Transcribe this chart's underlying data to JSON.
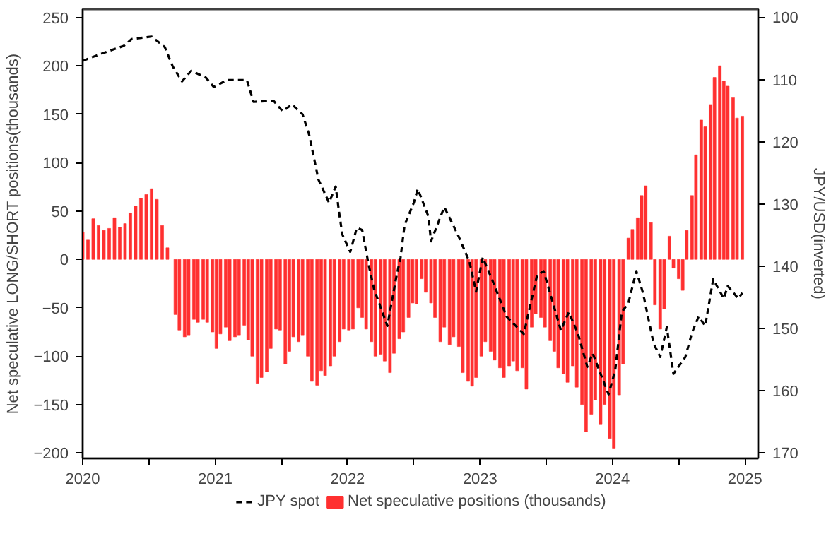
{
  "chart_data": {
    "type": "bar",
    "ylabel": "Net speculative LONG/SHORT positions(thousands)",
    "y2label": "JPY/USD(inverted)",
    "xlim": [
      2020,
      2025.1
    ],
    "xticks": [
      {
        "value": 2020,
        "label": "2020"
      },
      {
        "value": 2020.5,
        "label": null
      },
      {
        "value": 2021,
        "label": "2021"
      },
      {
        "value": 2021.5,
        "label": null
      },
      {
        "value": 2022,
        "label": "2022"
      },
      {
        "value": 2022.5,
        "label": null
      },
      {
        "value": 2023,
        "label": "2023"
      },
      {
        "value": 2023.5,
        "label": null
      },
      {
        "value": 2024,
        "label": "2024"
      },
      {
        "value": 2024.5,
        "label": null
      },
      {
        "value": 2025,
        "label": "2025"
      }
    ],
    "ylim": [
      -205.6,
      258.5
    ],
    "yticks": [
      -200,
      -150,
      -100,
      -50,
      0,
      50,
      100,
      150,
      200,
      250
    ],
    "y2lim": [
      170.9,
      98.7
    ],
    "y2ticks": [
      100,
      110,
      120,
      130,
      140,
      150,
      160,
      170
    ],
    "legend": "bottom",
    "series": [
      {
        "name": "JPY spot",
        "type": "line",
        "axis": "y2",
        "color": "#000000",
        "line_style": "dashed",
        "x": [
          2020.0,
          2020.16,
          2020.31,
          2020.37,
          2020.52,
          2020.62,
          2020.68,
          2020.75,
          2020.82,
          2020.93,
          2020.99,
          2021.09,
          2021.24,
          2021.29,
          2021.44,
          2021.51,
          2021.58,
          2021.66,
          2021.71,
          2021.78,
          2021.86,
          2021.91,
          2021.94,
          2021.96,
          2022.02,
          2022.07,
          2022.11,
          2022.16,
          2022.2,
          2022.3,
          2022.37,
          2022.4,
          2022.43,
          2022.5,
          2022.53,
          2022.61,
          2022.63,
          2022.73,
          2022.84,
          2022.92,
          2022.97,
          2023.02,
          2023.09,
          2023.2,
          2023.33,
          2023.43,
          2023.48,
          2023.61,
          2023.67,
          2023.74,
          2023.81,
          2023.85,
          2023.97,
          2024.02,
          2024.07,
          2024.12,
          2024.18,
          2024.23,
          2024.31,
          2024.36,
          2024.41,
          2024.46,
          2024.55,
          2024.6,
          2024.65,
          2024.7,
          2024.76,
          2024.84,
          2024.87,
          2024.95,
          2024.98
        ],
        "values": [
          107.0,
          105.7,
          104.6,
          103.5,
          103.1,
          104.8,
          107.9,
          110.3,
          108.6,
          109.7,
          111.2,
          110.1,
          110.1,
          113.6,
          113.4,
          115.1,
          114.0,
          115.6,
          118.9,
          126.1,
          129.8,
          127.2,
          132.0,
          134.9,
          137.7,
          133.8,
          134.2,
          139.9,
          143.7,
          149.6,
          141.5,
          138.6,
          133.4,
          129.8,
          127.6,
          132.0,
          136.0,
          130.5,
          135.3,
          139.3,
          144.1,
          138.6,
          142.1,
          148.1,
          150.9,
          141.5,
          140.8,
          150.3,
          147.4,
          150.9,
          156.2,
          154.0,
          160.6,
          156.8,
          147.4,
          145.9,
          140.8,
          144.3,
          152.4,
          154.6,
          149.8,
          157.3,
          154.6,
          150.7,
          148.1,
          149.6,
          142.1,
          145.2,
          143.2,
          145.2,
          144.3
        ]
      },
      {
        "name": "Net speculative positions (thousands)",
        "color": "#ff3030",
        "x": [
          2020.0,
          2020.04,
          2020.08,
          2020.12,
          2020.16,
          2020.2,
          2020.24,
          2020.28,
          2020.32,
          2020.36,
          2020.4,
          2020.44,
          2020.48,
          2020.52,
          2020.56,
          2020.6,
          2020.64,
          2020.7,
          2020.73,
          2020.77,
          2020.8,
          2020.84,
          2020.87,
          2020.91,
          2020.94,
          2020.98,
          2021.01,
          2021.04,
          2021.08,
          2021.11,
          2021.15,
          2021.18,
          2021.22,
          2021.25,
          2021.28,
          2021.32,
          2021.35,
          2021.39,
          2021.42,
          2021.46,
          2021.49,
          2021.53,
          2021.56,
          2021.59,
          2021.63,
          2021.66,
          2021.7,
          2021.73,
          2021.77,
          2021.8,
          2021.83,
          2021.87,
          2021.9,
          2021.94,
          2021.97,
          2022.01,
          2022.04,
          2022.08,
          2022.11,
          2022.14,
          2022.18,
          2022.21,
          2022.25,
          2022.28,
          2022.32,
          2022.35,
          2022.39,
          2022.42,
          2022.46,
          2022.49,
          2022.52,
          2022.56,
          2022.59,
          2022.63,
          2022.66,
          2022.7,
          2022.73,
          2022.77,
          2022.8,
          2022.84,
          2022.87,
          2022.91,
          2022.94,
          2022.97,
          2023.01,
          2023.04,
          2023.08,
          2023.11,
          2023.15,
          2023.18,
          2023.22,
          2023.25,
          2023.28,
          2023.32,
          2023.35,
          2023.39,
          2023.42,
          2023.46,
          2023.49,
          2023.53,
          2023.56,
          2023.59,
          2023.63,
          2023.66,
          2023.7,
          2023.73,
          2023.77,
          2023.8,
          2023.84,
          2023.87,
          2023.91,
          2023.94,
          2023.98,
          2024.01,
          2024.05,
          2024.08,
          2024.12,
          2024.15,
          2024.19,
          2024.22,
          2024.25,
          2024.29,
          2024.32,
          2024.36,
          2024.39,
          2024.43,
          2024.46,
          2024.5,
          2024.53,
          2024.56,
          2024.6,
          2024.63,
          2024.67,
          2024.7,
          2024.74,
          2024.77,
          2024.81,
          2024.84,
          2024.87,
          2024.91,
          2024.94,
          2024.98
        ],
        "values": [
          28,
          20,
          42,
          35,
          30,
          32,
          43,
          33,
          37,
          48,
          55,
          63,
          67,
          73,
          62,
          35,
          12,
          -57,
          -73,
          -80,
          -78,
          -62,
          -65,
          -62,
          -65,
          -75,
          -92,
          -77,
          -70,
          -84,
          -80,
          -78,
          -68,
          -83,
          -100,
          -128,
          -122,
          -116,
          -92,
          -72,
          -73,
          -108,
          -95,
          -80,
          -85,
          -78,
          -100,
          -126,
          -130,
          -115,
          -120,
          -110,
          -100,
          -85,
          -72,
          -73,
          -72,
          -50,
          -60,
          -72,
          -85,
          -100,
          -98,
          -105,
          -117,
          -97,
          -82,
          -75,
          -60,
          -45,
          -46,
          -20,
          -34,
          -45,
          -60,
          -85,
          -70,
          -88,
          -80,
          -90,
          -117,
          -126,
          -131,
          -122,
          -100,
          -85,
          -95,
          -104,
          -112,
          -122,
          -110,
          -105,
          -115,
          -112,
          -134,
          -70,
          -56,
          -60,
          -70,
          -84,
          -95,
          -112,
          -118,
          -127,
          -110,
          -132,
          -150,
          -178,
          -160,
          -145,
          -170,
          -150,
          -185,
          -195,
          -140,
          -108,
          22,
          31,
          43,
          66,
          76,
          38,
          -47,
          -72,
          -51,
          24,
          -9,
          -20,
          -32,
          30,
          66,
          108,
          144,
          137,
          160,
          188,
          200,
          184,
          179,
          167,
          146,
          148
        ]
      }
    ]
  }
}
